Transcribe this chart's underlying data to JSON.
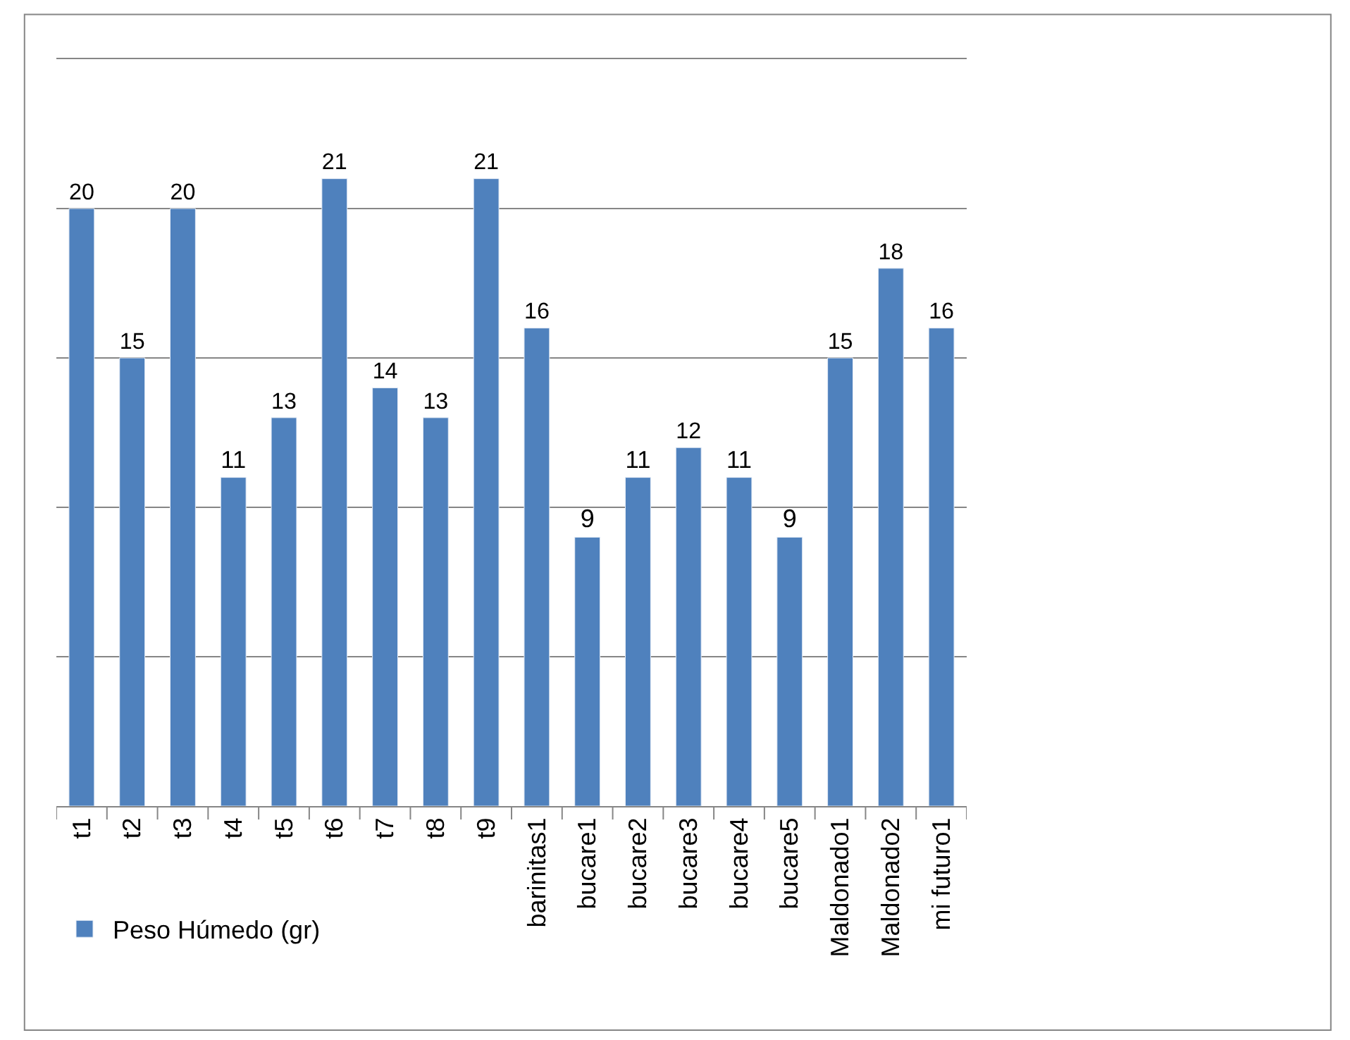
{
  "chart_data": {
    "type": "bar",
    "categories": [
      "t1",
      "t2",
      "t3",
      "t4",
      "t5",
      "t6",
      "t7",
      "t8",
      "t9",
      "barinitas1",
      "bucare1",
      "bucare2",
      "bucare3",
      "bucare4",
      "bucare5",
      "Maldonado1",
      "Maldonado2",
      "mi futuro1"
    ],
    "series": [
      {
        "name": "Peso Húmedo (gr)",
        "color": "#4f81bd",
        "values": [
          20,
          15,
          20,
          11,
          13,
          21,
          14,
          13,
          21,
          16,
          9,
          11,
          12,
          11,
          9,
          15,
          18,
          16
        ]
      }
    ],
    "ylim": [
      0,
      25
    ],
    "yticks": [
      {
        "value": 0,
        "label": null
      },
      {
        "value": 5,
        "label": null
      },
      {
        "value": 10,
        "label": null
      },
      {
        "value": 15,
        "label": null
      },
      {
        "value": 20,
        "label": null
      },
      {
        "value": 25,
        "label": null
      }
    ],
    "tick_labels": "x",
    "grid": "y",
    "legend": "bottom left",
    "data_labels": true
  }
}
